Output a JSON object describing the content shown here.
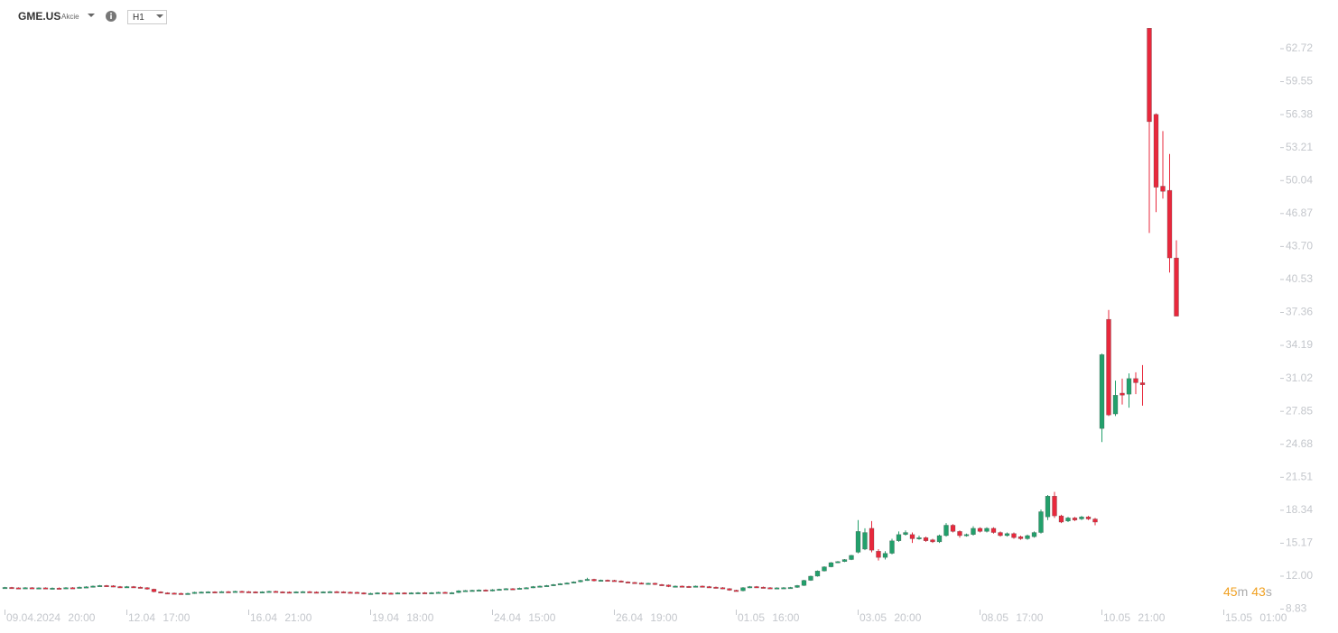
{
  "header": {
    "symbol": "GME.US",
    "instrument_type": "Akcie",
    "timeframe": "H1"
  },
  "countdown": {
    "minutes": "45",
    "minutes_unit": "m",
    "seconds": "43",
    "seconds_unit": "s"
  },
  "chart_data": {
    "type": "candlestick",
    "up_color": "#22a06b",
    "down_color": "#e8283c",
    "grid": false,
    "ylim": [
      8.4,
      65
    ],
    "yticks": [
      8.83,
      {
        "value": 12,
        "label": "12.00"
      },
      15.17,
      18.34,
      21.51,
      24.68,
      27.85,
      31.02,
      34.19,
      37.36,
      40.53,
      {
        "value": 43.7,
        "label": "43.70"
      },
      46.87,
      50.04,
      53.21,
      56.38,
      59.55,
      62.72
    ],
    "categories": [
      "09.04.2024 20:00",
      null,
      null,
      null,
      null,
      null,
      null,
      null,
      null,
      null,
      null,
      null,
      null,
      null,
      null,
      null,
      null,
      null,
      "12.04 17:00",
      null,
      null,
      null,
      null,
      null,
      null,
      null,
      null,
      null,
      null,
      null,
      null,
      null,
      null,
      null,
      null,
      null,
      "16.04 21:00",
      null,
      null,
      null,
      null,
      null,
      null,
      null,
      null,
      null,
      null,
      null,
      null,
      null,
      null,
      null,
      null,
      null,
      "19.04 18:00",
      null,
      null,
      null,
      null,
      null,
      null,
      null,
      null,
      null,
      null,
      null,
      null,
      null,
      null,
      null,
      null,
      null,
      "24.04 15:00",
      null,
      null,
      null,
      null,
      null,
      null,
      null,
      null,
      null,
      null,
      null,
      null,
      null,
      null,
      null,
      null,
      null,
      "26.04 19:00",
      null,
      null,
      null,
      null,
      null,
      null,
      null,
      null,
      null,
      null,
      null,
      null,
      null,
      null,
      null,
      null,
      null,
      "01.05 16:00",
      null,
      null,
      null,
      null,
      null,
      null,
      null,
      null,
      null,
      null,
      null,
      null,
      null,
      null,
      null,
      null,
      null,
      "03.05 20:00",
      null,
      null,
      null,
      null,
      null,
      null,
      null,
      null,
      null,
      null,
      null,
      null,
      null,
      null,
      null,
      null,
      null,
      "08.05 17:00",
      null,
      null,
      null,
      null,
      null,
      null,
      null,
      null,
      null,
      null,
      null,
      null,
      null,
      null,
      null,
      null,
      null,
      "10.05 21:00",
      null,
      null,
      null,
      null,
      null,
      null,
      null,
      null,
      null,
      null,
      null,
      null,
      null,
      null,
      null,
      null,
      null,
      "15.05 01:00"
    ],
    "open": [
      10.88,
      10.92,
      10.88,
      10.84,
      10.9,
      10.85,
      10.88,
      10.84,
      10.86,
      10.82,
      10.9,
      10.88,
      10.95,
      10.98,
      11.05,
      11.1,
      11.08,
      11,
      10.98,
      11,
      10.95,
      10.9,
      10.75,
      10.5,
      10.4,
      10.38,
      10.35,
      10.3,
      10.35,
      10.45,
      10.48,
      10.5,
      10.47,
      10.52,
      10.5,
      10.55,
      10.52,
      10.5,
      10.42,
      10.5,
      10.55,
      10.5,
      10.48,
      10.45,
      10.5,
      10.52,
      10.48,
      10.45,
      10.5,
      10.52,
      10.5,
      10.47,
      10.45,
      10.4,
      10.3,
      10.35,
      10.4,
      10.38,
      10.35,
      10.4,
      10.38,
      10.4,
      10.42,
      10.4,
      10.42,
      10.45,
      10.4,
      10.42,
      10.6,
      10.62,
      10.65,
      10.68,
      10.6,
      10.7,
      10.75,
      10.8,
      10.78,
      10.85,
      10.9,
      11,
      11.05,
      11.1,
      11.2,
      11.28,
      11.35,
      11.45,
      11.6,
      11.7,
      11.55,
      11.62,
      11.6,
      11.55,
      11.45,
      11.4,
      11.35,
      11.3,
      11.32,
      11.2,
      11.15,
      11,
      11.05,
      11.02,
      11,
      11.05,
      11,
      10.95,
      10.9,
      10.8,
      10.65,
      10.6,
      10.9,
      11,
      10.95,
      10.9,
      10.85,
      10.88,
      10.9,
      10.92,
      11.1,
      11.6,
      12,
      12.5,
      12.9,
      13.3,
      13.4,
      13.6,
      14.3,
      14.6,
      16.6,
      14.4,
      13.8,
      14.2,
      15.4,
      16,
      16,
      15.6,
      15.7,
      15.5,
      15.3,
      15.9,
      16.9,
      16.3,
      15.9,
      16,
      16.6,
      16.3,
      16.6,
      16.2,
      15.9,
      16.1,
      15.8,
      15.6,
      15.8,
      16.2,
      17.7,
      19.7,
      17.8,
      17.3,
      17.6,
      17.5,
      17.7,
      17.5,
      26.2,
      36.7,
      27.6,
      29.6,
      29.5,
      31,
      30.6,
      64.7,
      56.4,
      49.5,
      49.1,
      42.6,
      null,
      null,
      null,
      null,
      null,
      null,
      null
    ],
    "high": [
      10.97,
      10.97,
      10.93,
      10.95,
      10.95,
      10.93,
      10.93,
      10.91,
      10.91,
      10.95,
      10.95,
      11,
      11.03,
      11.1,
      11.15,
      11.15,
      11.13,
      11.05,
      11.05,
      11.05,
      11,
      10.95,
      10.8,
      10.55,
      10.45,
      10.43,
      10.4,
      10.4,
      10.5,
      10.53,
      10.55,
      10.55,
      10.57,
      10.57,
      10.6,
      10.6,
      10.57,
      10.55,
      10.55,
      10.6,
      10.6,
      10.55,
      10.53,
      10.55,
      10.57,
      10.57,
      10.53,
      10.55,
      10.57,
      10.57,
      10.55,
      10.52,
      10.5,
      10.45,
      10.4,
      10.45,
      10.45,
      10.43,
      10.45,
      10.45,
      10.45,
      10.47,
      10.47,
      10.47,
      10.5,
      10.5,
      10.47,
      10.65,
      10.67,
      10.7,
      10.73,
      10.73,
      10.75,
      10.8,
      10.85,
      10.85,
      10.9,
      10.95,
      11.05,
      11.1,
      11.15,
      11.25,
      11.33,
      11.4,
      11.5,
      11.65,
      11.85,
      11.75,
      11.67,
      11.67,
      11.65,
      11.6,
      11.5,
      11.45,
      11.4,
      11.37,
      11.37,
      11.25,
      11.2,
      11.1,
      11.1,
      11.07,
      11.1,
      11.1,
      11.05,
      11,
      10.95,
      10.85,
      10.7,
      10.95,
      11.05,
      11.05,
      11,
      10.95,
      10.93,
      10.95,
      10.97,
      11.15,
      11.65,
      12.05,
      12.55,
      12.95,
      13.35,
      13.45,
      13.65,
      14.05,
      17.4,
      16.6,
      17.3,
      14.6,
      14.4,
      15.6,
      16.3,
      16.4,
      16.2,
      15.9,
      15.8,
      15.6,
      16,
      17.1,
      17,
      16.4,
      16.1,
      16.8,
      16.7,
      16.7,
      16.7,
      16.3,
      16.2,
      16.2,
      15.9,
      16,
      16.3,
      18.4,
      19.8,
      20.1,
      17.9,
      17.7,
      17.7,
      17.8,
      17.8,
      17.6,
      33.4,
      37.6,
      30.8,
      31,
      31.5,
      31.6,
      32.3,
      64.7,
      56.5,
      54.8,
      52.6,
      44.3,
      null,
      null,
      null,
      null,
      null,
      null,
      null
    ],
    "low": [
      10.83,
      10.83,
      10.79,
      10.79,
      10.8,
      10.8,
      10.79,
      10.79,
      10.77,
      10.77,
      10.83,
      10.83,
      10.9,
      10.93,
      11,
      11.03,
      10.95,
      10.93,
      10.93,
      10.9,
      10.85,
      10.7,
      10.45,
      10.35,
      10.33,
      10.3,
      10.25,
      10.25,
      10.3,
      10.4,
      10.43,
      10.42,
      10.42,
      10.45,
      10.45,
      10.47,
      10.45,
      10.37,
      10.37,
      10.45,
      10.45,
      10.43,
      10.4,
      10.4,
      10.45,
      10.43,
      10.4,
      10.4,
      10.45,
      10.45,
      10.42,
      10.4,
      10.35,
      10.25,
      10.25,
      10.3,
      10.33,
      10.3,
      10.3,
      10.33,
      10.33,
      10.35,
      10.35,
      10.35,
      10.37,
      10.35,
      10.35,
      10.37,
      10.55,
      10.57,
      10.6,
      10.55,
      10.55,
      10.65,
      10.7,
      10.73,
      10.73,
      10.8,
      10.85,
      10.95,
      11,
      11.05,
      11.15,
      11.23,
      11.3,
      11.4,
      11.55,
      11.5,
      11.5,
      11.55,
      11.5,
      11.4,
      11.35,
      11.3,
      11.25,
      11.25,
      11.15,
      11.1,
      10.95,
      10.95,
      10.97,
      10.95,
      10.95,
      10.95,
      10.9,
      10.85,
      10.75,
      10.6,
      10.55,
      10.55,
      10.85,
      10.9,
      10.85,
      10.8,
      10.8,
      10.83,
      10.85,
      10.87,
      11.05,
      11.55,
      11.95,
      12.45,
      12.85,
      13.25,
      13.35,
      13.55,
      14.2,
      14.5,
      14.3,
      13.5,
      13.6,
      14.1,
      15.3,
      15.9,
      15.2,
      15.5,
      15.3,
      15.2,
      15.2,
      15.8,
      16.2,
      15.7,
      15.8,
      15.9,
      16.2,
      16.2,
      16.1,
      15.8,
      15.8,
      15.6,
      15.5,
      15.5,
      15.7,
      16.1,
      17.4,
      17.6,
      17.1,
      17.2,
      17.3,
      17.4,
      17.4,
      16.9,
      24.9,
      27.4,
      27.4,
      28.5,
      28.2,
      29.5,
      28.4,
      45,
      47,
      48.3,
      41.2,
      37,
      null,
      null,
      null,
      null,
      null,
      null,
      null
    ],
    "close": [
      10.92,
      10.88,
      10.84,
      10.9,
      10.85,
      10.88,
      10.84,
      10.86,
      10.82,
      10.9,
      10.88,
      10.95,
      10.98,
      11.05,
      11.1,
      11.08,
      11,
      10.98,
      11,
      10.95,
      10.9,
      10.75,
      10.5,
      10.4,
      10.38,
      10.35,
      10.3,
      10.35,
      10.45,
      10.48,
      10.5,
      10.47,
      10.52,
      10.5,
      10.55,
      10.52,
      10.5,
      10.42,
      10.5,
      10.55,
      10.5,
      10.48,
      10.45,
      10.5,
      10.52,
      10.48,
      10.45,
      10.5,
      10.52,
      10.5,
      10.47,
      10.45,
      10.4,
      10.3,
      10.35,
      10.4,
      10.38,
      10.35,
      10.4,
      10.38,
      10.4,
      10.42,
      10.4,
      10.42,
      10.45,
      10.4,
      10.42,
      10.6,
      10.62,
      10.65,
      10.68,
      10.6,
      10.7,
      10.75,
      10.8,
      10.78,
      10.85,
      10.9,
      11,
      11.05,
      11.1,
      11.2,
      11.28,
      11.35,
      11.45,
      11.6,
      11.7,
      11.55,
      11.62,
      11.6,
      11.55,
      11.45,
      11.4,
      11.35,
      11.3,
      11.32,
      11.2,
      11.15,
      11,
      11.05,
      11.02,
      11,
      11.05,
      11,
      10.95,
      10.9,
      10.8,
      10.65,
      10.6,
      10.9,
      11,
      10.95,
      10.9,
      10.85,
      10.88,
      10.9,
      10.92,
      11.1,
      11.6,
      12,
      12.5,
      12.9,
      13.3,
      13.4,
      13.6,
      14,
      16.3,
      16.2,
      14.5,
      13.8,
      14.2,
      15.4,
      16,
      16.2,
      15.6,
      15.7,
      15.4,
      15.3,
      15.9,
      16.9,
      16.3,
      15.9,
      16,
      16.6,
      16.3,
      16.6,
      16.2,
      15.9,
      16.1,
      15.7,
      15.6,
      15.9,
      16.2,
      18.2,
      19.7,
      17.8,
      17.2,
      17.6,
      17.4,
      17.7,
      17.5,
      17.2,
      33.3,
      27.5,
      29.4,
      29.4,
      31,
      30.6,
      30.4,
      55.7,
      49.4,
      49,
      42.6,
      37,
      null,
      null,
      null,
      null,
      null,
      null,
      null
    ]
  }
}
